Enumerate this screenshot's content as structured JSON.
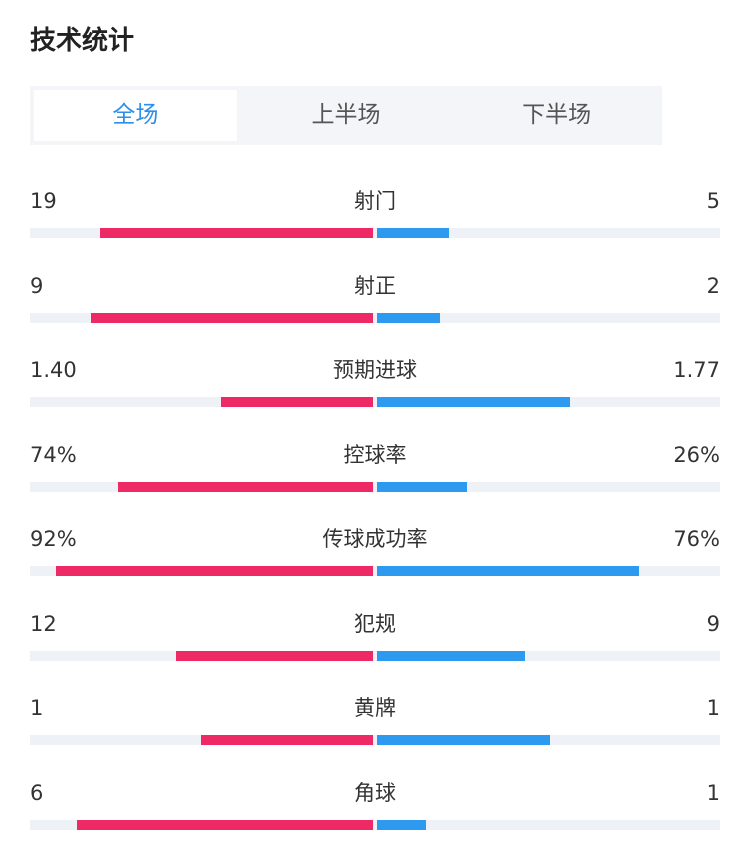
{
  "header": {
    "title": "技术统计"
  },
  "tabs": {
    "items": [
      "全场",
      "上半场",
      "下半场"
    ],
    "active": 0
  },
  "colors": {
    "home": "#ee2a66",
    "away": "#2d9af0",
    "track": "#eef1f5"
  },
  "stats": [
    {
      "label": "射门",
      "values": [
        19,
        5
      ]
    },
    {
      "label": "射正",
      "values": [
        9,
        2
      ]
    },
    {
      "label": "预期进球",
      "values": [
        1.4,
        1.77
      ],
      "value_labels": [
        "1.40",
        "1.77"
      ]
    },
    {
      "label": "控球率",
      "values": [
        74,
        26
      ],
      "value_labels": [
        "74%",
        "26%"
      ],
      "scale": "percent"
    },
    {
      "label": "传球成功率",
      "values": [
        92,
        76
      ],
      "value_labels": [
        "92%",
        "76%"
      ],
      "scale": "percent"
    },
    {
      "label": "犯规",
      "values": [
        12,
        9
      ]
    },
    {
      "label": "黄牌",
      "values": [
        1,
        1
      ]
    },
    {
      "label": "角球",
      "values": [
        6,
        1
      ]
    }
  ]
}
